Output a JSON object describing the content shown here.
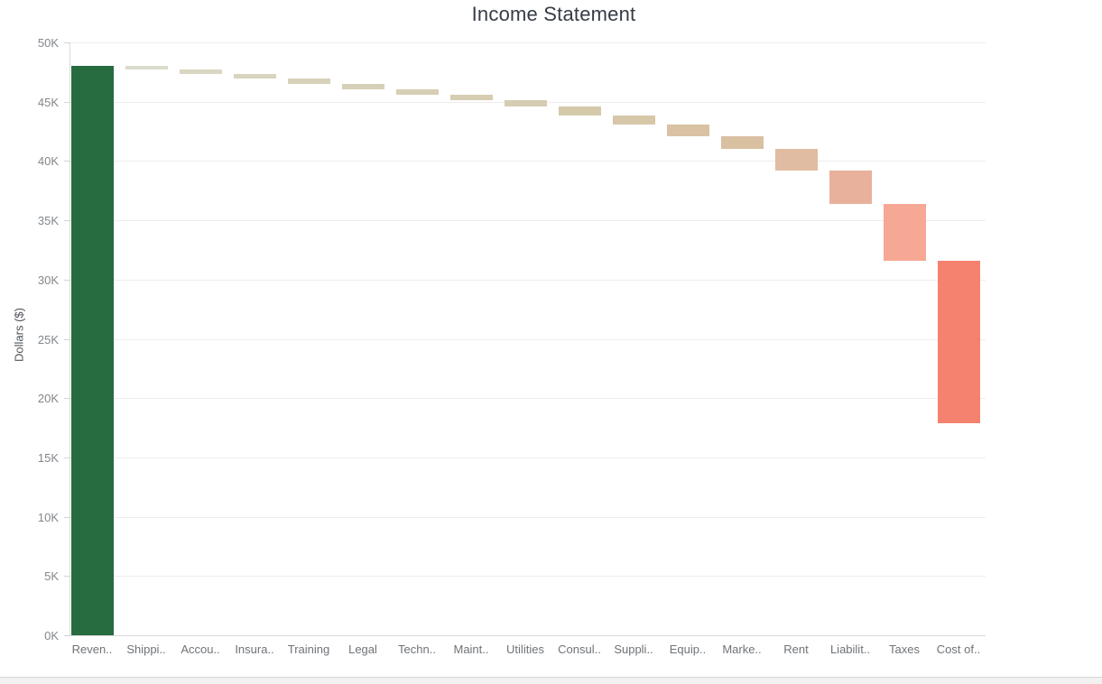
{
  "chart": {
    "title": "Income Statement",
    "ylabel": "Dollars ($)"
  },
  "chart_data": {
    "type": "bar",
    "subtype": "waterfall",
    "title": "Income Statement",
    "xlabel": "",
    "ylabel": "Dollars ($)",
    "ylim": [
      0,
      50000
    ],
    "grid": true,
    "legend": false,
    "categories": [
      "Reven..",
      "Shippi..",
      "Accou..",
      "Insura..",
      "Training",
      "Legal",
      "Techn..",
      "Maint..",
      "Utilities",
      "Consul..",
      "Suppli..",
      "Equip..",
      "Marke..",
      "Rent",
      "Liabilit..",
      "Taxes",
      "Cost of.."
    ],
    "values": [
      48000,
      -280,
      -400,
      -400,
      -410,
      -450,
      -460,
      -500,
      -480,
      -760,
      -760,
      -1000,
      -1080,
      -1850,
      -2760,
      -4800,
      -13750
    ],
    "running_total_end": 17860,
    "bar_colors": [
      "#276b40",
      "#dbdbcb",
      "#d9d6c1",
      "#d8d4be",
      "#d8d2bb",
      "#d7d0b8",
      "#d6ceb5",
      "#d6cdb2",
      "#d5ccb1",
      "#d5c9ab",
      "#d6c7a9",
      "#d8c2a3",
      "#d9c0a1",
      "#dfbca2",
      "#e7b19b",
      "#f7a894",
      "#f5826e"
    ],
    "y_ticks": {
      "values": [
        0,
        5000,
        10000,
        15000,
        20000,
        25000,
        30000,
        35000,
        40000,
        45000,
        50000
      ],
      "labels": [
        "0K",
        "5K",
        "10K",
        "15K",
        "20K",
        "25K",
        "30K",
        "35K",
        "40K",
        "45K",
        "50K"
      ]
    },
    "colors_meaning": {
      "positive": "#276b40",
      "max_negative": "#f5826e"
    }
  }
}
